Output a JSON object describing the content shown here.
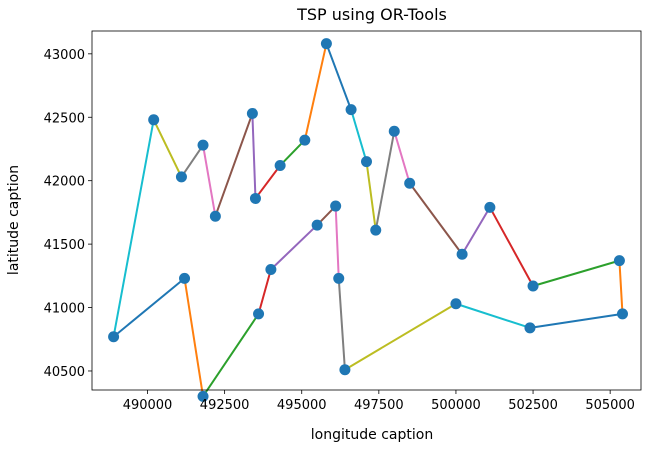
{
  "chart_data": {
    "type": "line",
    "title": "TSP using OR-Tools",
    "xlabel": "longitude caption",
    "ylabel": "latitude caption",
    "xlim": [
      488200,
      506000
    ],
    "ylim": [
      40350,
      43180
    ],
    "xticks": [
      490000,
      492500,
      495000,
      497500,
      500000,
      502500,
      505000
    ],
    "yticks": [
      40500,
      41000,
      41500,
      42000,
      42500,
      43000
    ],
    "grid": false,
    "marker_color": "#1f77b4",
    "segment_colors": [
      "#1f77b4",
      "#ff7f0e",
      "#2ca02c",
      "#d62728",
      "#9467bd",
      "#8c564b",
      "#e377c2",
      "#7f7f7f",
      "#bcbd22",
      "#17becf"
    ],
    "route": [
      [
        488900,
        40770
      ],
      [
        491200,
        41230
      ],
      [
        491800,
        40300
      ],
      [
        493600,
        40950
      ],
      [
        494000,
        41300
      ],
      [
        495500,
        41650
      ],
      [
        496100,
        41800
      ],
      [
        496200,
        41230
      ],
      [
        496400,
        40510
      ],
      [
        500000,
        41030
      ],
      [
        502400,
        40840
      ],
      [
        505400,
        40950
      ],
      [
        505300,
        41370
      ],
      [
        502500,
        41170
      ],
      [
        501100,
        41790
      ],
      [
        500200,
        41420
      ],
      [
        498500,
        41980
      ],
      [
        498000,
        42390
      ],
      [
        497400,
        41610
      ],
      [
        497100,
        42150
      ],
      [
        496600,
        42560
      ],
      [
        495800,
        43080
      ],
      [
        495100,
        42320
      ],
      [
        494300,
        42120
      ],
      [
        493500,
        41860
      ],
      [
        493400,
        42530
      ],
      [
        492200,
        41720
      ],
      [
        491800,
        42280
      ],
      [
        491100,
        42030
      ],
      [
        490200,
        42480
      ],
      [
        488900,
        40770
      ]
    ]
  }
}
